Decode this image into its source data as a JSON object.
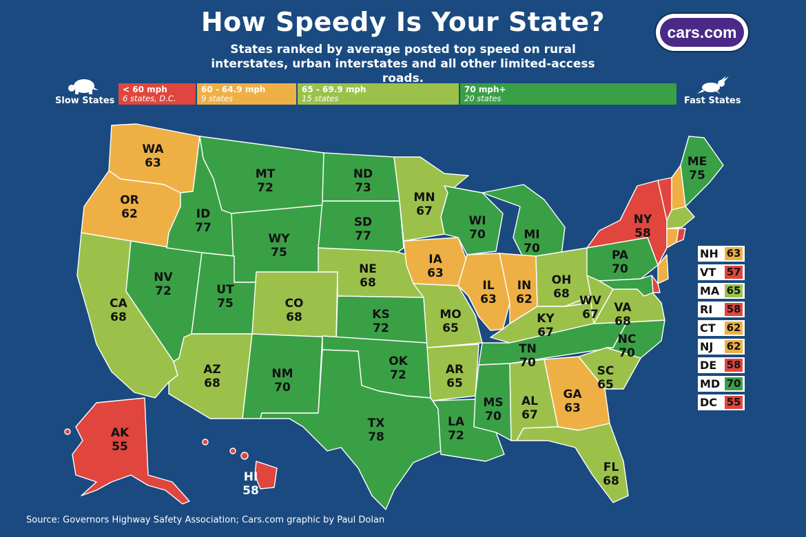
{
  "header": {
    "title": "How Speedy Is Your State?",
    "subtitle": "States ranked by average posted top speed on rural interstates, urban interstates and all other limited-access roads.",
    "logo_text": "cars.com"
  },
  "legend": {
    "slow_label": "Slow States",
    "fast_label": "Fast States",
    "slow_icon": "turtle-icon",
    "fast_icon": "rabbit-icon",
    "categories": [
      {
        "range": "< 60 mph",
        "count": "6 states, D.C.",
        "color": "#e0463e"
      },
      {
        "range": "60 - 64.9 mph",
        "count": "9 states",
        "color": "#eeb045"
      },
      {
        "range": "65 - 69.9 mph",
        "count": "15 states",
        "color": "#9cc14b"
      },
      {
        "range": "70 mph+",
        "count": "20 states",
        "color": "#3aa046"
      }
    ]
  },
  "states": {
    "WA": "63",
    "OR": "62",
    "CA": "68",
    "NV": "72",
    "ID": "77",
    "MT": "72",
    "WY": "75",
    "UT": "75",
    "AZ": "68",
    "NM": "70",
    "CO": "68",
    "ND": "73",
    "SD": "77",
    "NE": "68",
    "KS": "72",
    "OK": "72",
    "TX": "78",
    "MN": "67",
    "IA": "63",
    "MO": "65",
    "AR": "65",
    "LA": "72",
    "WI": "70",
    "IL": "63",
    "MI": "70",
    "IN": "62",
    "OH": "68",
    "KY": "67",
    "TN": "70",
    "MS": "70",
    "AL": "67",
    "GA": "63",
    "FL": "68",
    "SC": "65",
    "NC": "70",
    "VA": "68",
    "WV": "67",
    "PA": "70",
    "NY": "58",
    "ME": "75",
    "AK": "55",
    "HI": "58"
  },
  "small_states": [
    {
      "abbr": "NH",
      "speed": "63",
      "color": "#eeb045"
    },
    {
      "abbr": "VT",
      "speed": "57",
      "color": "#e0463e"
    },
    {
      "abbr": "MA",
      "speed": "65",
      "color": "#9cc14b"
    },
    {
      "abbr": "RI",
      "speed": "58",
      "color": "#e0463e"
    },
    {
      "abbr": "CT",
      "speed": "62",
      "color": "#eeb045"
    },
    {
      "abbr": "NJ",
      "speed": "62",
      "color": "#eeb045"
    },
    {
      "abbr": "DE",
      "speed": "58",
      "color": "#e0463e"
    },
    {
      "abbr": "MD",
      "speed": "70",
      "color": "#3aa046"
    },
    {
      "abbr": "DC",
      "speed": "55",
      "color": "#e0463e"
    }
  ],
  "colors": {
    "background": "#1a4a80",
    "red": "#e0463e",
    "orange": "#eeb045",
    "lightgreen": "#9cc14b",
    "green": "#3aa046"
  },
  "footer": {
    "source": "Source: Governors Highway Safety Association; Cars.com graphic by Paul Dolan"
  }
}
